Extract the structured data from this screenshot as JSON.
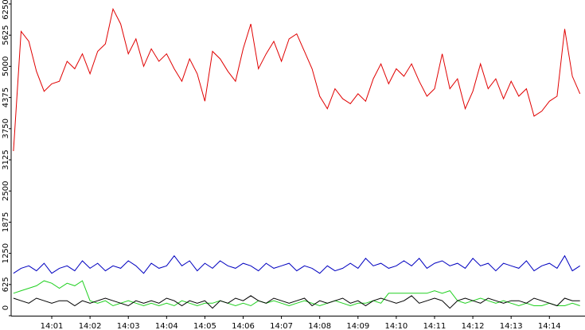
{
  "chart_data": {
    "type": "line",
    "x": [
      840.0,
      840.2,
      840.4,
      840.6,
      840.8,
      841.0,
      841.2,
      841.4,
      841.6,
      841.8,
      842.0,
      842.2,
      842.4,
      842.6,
      842.8,
      843.0,
      843.2,
      843.4,
      843.6,
      843.8,
      844.0,
      844.2,
      844.4,
      844.6,
      844.8,
      845.0,
      845.2,
      845.4,
      845.6,
      845.8,
      846.0,
      846.2,
      846.4,
      846.6,
      846.8,
      847.0,
      847.2,
      847.4,
      847.6,
      847.8,
      848.0,
      848.2,
      848.4,
      848.6,
      848.8,
      849.0,
      849.2,
      849.4,
      849.6,
      849.8,
      850.0,
      850.2,
      850.4,
      850.6,
      850.8,
      851.0,
      851.2,
      851.4,
      851.6,
      851.8,
      852.0,
      852.2,
      852.4,
      852.6,
      852.8,
      853.0,
      853.2,
      853.4,
      853.6,
      853.8,
      854.0,
      854.2,
      854.4,
      854.6,
      854.8
    ],
    "series": [
      {
        "color": "#e00000",
        "values": [
          3300,
          5700,
          5500,
          4900,
          4500,
          4650,
          4700,
          5100,
          4950,
          5250,
          4850,
          5300,
          5450,
          6150,
          5850,
          5250,
          5550,
          5000,
          5350,
          5100,
          5250,
          4950,
          4700,
          5150,
          4850,
          4300,
          5300,
          5150,
          4900,
          4700,
          5350,
          5850,
          4950,
          5250,
          5500,
          5100,
          5550,
          5650,
          5300,
          4950,
          4400,
          4150,
          4550,
          4350,
          4250,
          4450,
          4300,
          4750,
          5050,
          4650,
          4950,
          4800,
          5050,
          4700,
          4400,
          4550,
          5250,
          4550,
          4750,
          4150,
          4500,
          5050,
          4550,
          4750,
          4350,
          4700,
          4400,
          4550,
          4000,
          4100,
          4300,
          4400,
          5750,
          4800,
          4450
        ]
      },
      {
        "color": "#0000c0",
        "values": [
          850,
          950,
          1000,
          900,
          1050,
          850,
          950,
          1000,
          900,
          1100,
          950,
          1050,
          900,
          1000,
          950,
          1100,
          1000,
          850,
          1050,
          950,
          1000,
          1200,
          1000,
          1100,
          900,
          1050,
          950,
          1100,
          1000,
          950,
          1050,
          1000,
          900,
          1050,
          950,
          1000,
          1050,
          900,
          1000,
          950,
          850,
          1000,
          900,
          950,
          1050,
          950,
          1150,
          1000,
          1050,
          950,
          1000,
          1100,
          1000,
          1150,
          950,
          1050,
          1100,
          1000,
          1050,
          950,
          1150,
          1000,
          1050,
          900,
          1050,
          1000,
          950,
          1100,
          900,
          1000,
          1050,
          950,
          1200,
          900,
          1000
        ]
      },
      {
        "color": "#20d020",
        "values": [
          450,
          500,
          550,
          600,
          700,
          650,
          550,
          650,
          600,
          700,
          300,
          250,
          300,
          200,
          250,
          300,
          250,
          200,
          250,
          200,
          250,
          200,
          300,
          250,
          200,
          250,
          250,
          300,
          250,
          200,
          250,
          200,
          300,
          250,
          300,
          250,
          200,
          250,
          300,
          250,
          200,
          250,
          300,
          250,
          200,
          250,
          250,
          300,
          250,
          450,
          450,
          450,
          450,
          450,
          450,
          500,
          450,
          500,
          300,
          250,
          300,
          350,
          300,
          250,
          300,
          250,
          200,
          250,
          200,
          200,
          250,
          200,
          200,
          250,
          200
        ]
      },
      {
        "color": "#000000",
        "values": [
          350,
          300,
          250,
          350,
          300,
          250,
          300,
          300,
          200,
          300,
          250,
          300,
          350,
          300,
          250,
          200,
          300,
          250,
          300,
          250,
          350,
          300,
          200,
          300,
          250,
          300,
          150,
          300,
          250,
          350,
          300,
          400,
          300,
          250,
          350,
          300,
          250,
          300,
          350,
          200,
          300,
          250,
          300,
          350,
          250,
          300,
          200,
          300,
          350,
          300,
          250,
          300,
          400,
          250,
          300,
          350,
          300,
          150,
          300,
          350,
          300,
          250,
          350,
          300,
          250,
          300,
          300,
          250,
          350,
          300,
          250,
          200,
          350,
          300,
          300
        ]
      }
    ],
    "xlim": [
      839.96,
      854.93
    ],
    "xticks": [
      {
        "value": 841,
        "label": "14:01"
      },
      {
        "value": 842,
        "label": "14:02"
      },
      {
        "value": 843,
        "label": "14:03"
      },
      {
        "value": 844,
        "label": "14:04"
      },
      {
        "value": 845,
        "label": "14:05"
      },
      {
        "value": 846,
        "label": "14:06"
      },
      {
        "value": 847,
        "label": "14:07"
      },
      {
        "value": 848,
        "label": "14:08"
      },
      {
        "value": 849,
        "label": "14:09"
      },
      {
        "value": 850,
        "label": "14:10"
      },
      {
        "value": 851,
        "label": "14:11"
      },
      {
        "value": 852,
        "label": "14:12"
      },
      {
        "value": 853,
        "label": "14:13"
      },
      {
        "value": 854,
        "label": "14:14"
      }
    ],
    "ylim": [
      0,
      6250
    ],
    "yticks": [
      0,
      625,
      1250,
      1875,
      2500,
      3125,
      3750,
      4375,
      5000,
      5625,
      6250
    ]
  }
}
